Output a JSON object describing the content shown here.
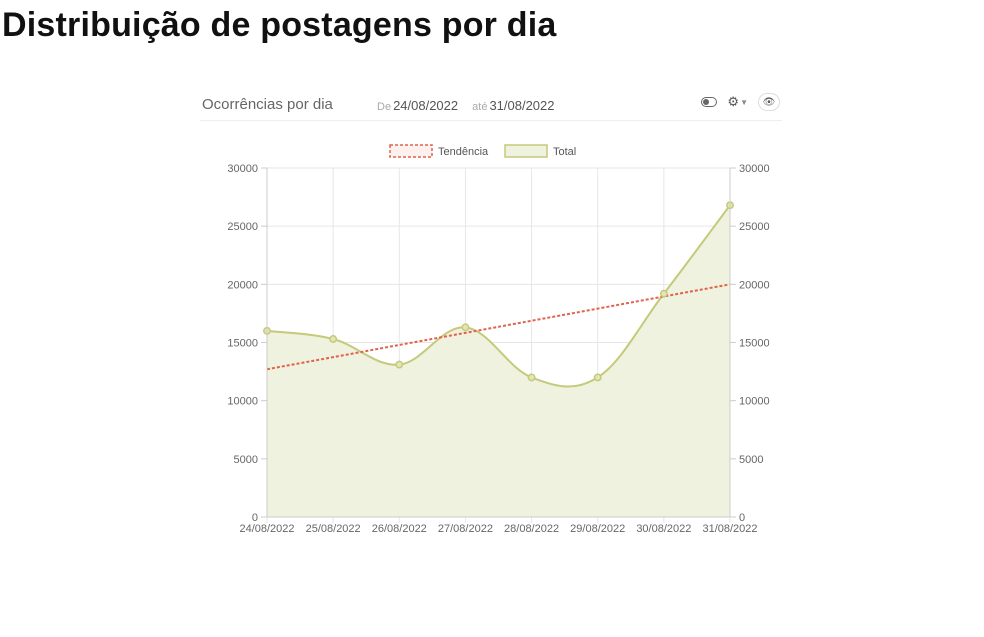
{
  "page": {
    "title": "Distribuição de postagens por dia"
  },
  "panel": {
    "title": "Ocorrências por dia",
    "from_label": "De",
    "from_value": "24/08/2022",
    "to_label": "até",
    "to_value": "31/08/2022",
    "icons": [
      "toggle-icon",
      "gear-icon",
      "chevron-down-icon",
      "eye-icon"
    ]
  },
  "chart_data": {
    "type": "line",
    "categories": [
      "24/08/2022",
      "25/08/2022",
      "26/08/2022",
      "27/08/2022",
      "28/08/2022",
      "29/08/2022",
      "30/08/2022",
      "31/08/2022"
    ],
    "series": [
      {
        "name": "Total",
        "type": "area",
        "smooth": true,
        "values": [
          16000,
          15300,
          13100,
          16300,
          12000,
          12000,
          19200,
          26800
        ],
        "color": "#c5c97a",
        "fill": "#eef2de"
      },
      {
        "name": "Tendência",
        "type": "line",
        "dashed": true,
        "values": [
          12700,
          13740,
          14790,
          15830,
          16870,
          17910,
          18960,
          20000
        ],
        "color": "#e2624b"
      }
    ],
    "y_ticks": [
      0,
      5000,
      10000,
      15000,
      20000,
      25000,
      30000
    ],
    "ylim": [
      0,
      30000
    ],
    "y_axis_right": true,
    "grid": true,
    "legend": "top-center"
  }
}
